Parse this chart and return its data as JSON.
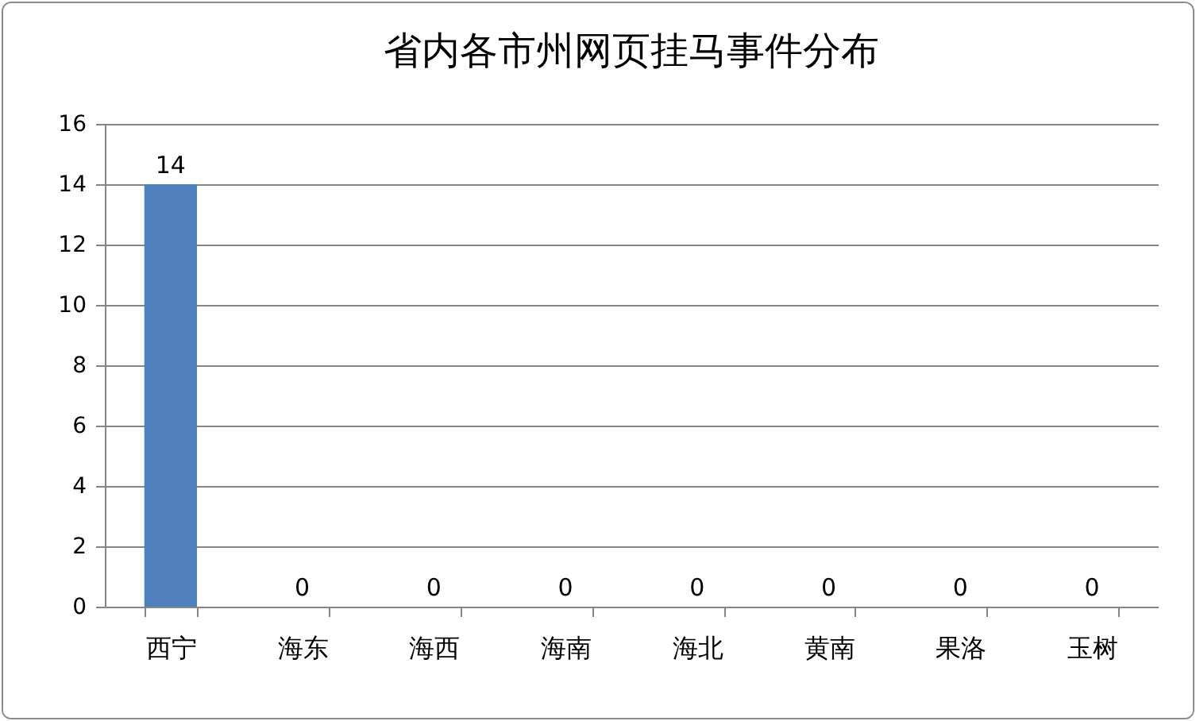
{
  "chart_data": {
    "type": "bar",
    "title": "省内各市州网页挂马事件分布",
    "categories": [
      "西宁",
      "海东",
      "海西",
      "海南",
      "海北",
      "黄南",
      "果洛",
      "玉树"
    ],
    "values": [
      14,
      0,
      0,
      0,
      0,
      0,
      0,
      0
    ],
    "color": "#4f81bd",
    "ylim": [
      0,
      16
    ],
    "yticks": [
      0,
      2,
      4,
      6,
      8,
      10,
      12,
      14,
      16
    ],
    "grid": "y",
    "data_labels": true
  }
}
